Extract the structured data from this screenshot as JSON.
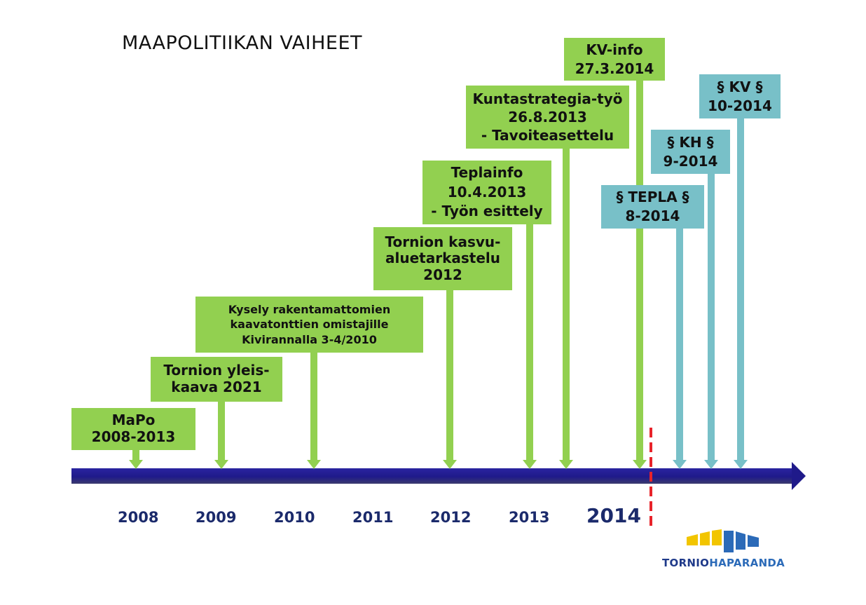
{
  "title": "MAAPOLITIIKAN VAIHEET",
  "events": [
    {
      "id": "mapo",
      "lines": [
        "MaPo",
        "2008-2013"
      ],
      "color": "#92d050"
    },
    {
      "id": "yleiskaava",
      "lines": [
        "Tornion yleis-",
        "kaava 2021"
      ],
      "color": "#92d050"
    },
    {
      "id": "kysely",
      "lines": [
        "Kysely rakentamattomien",
        "kaavatonttien omistajille",
        "Kivirannalla 3-4/2010"
      ],
      "color": "#92d050"
    },
    {
      "id": "kasvualue",
      "lines": [
        "Tornion kasvu-",
        "aluetarkastelu",
        "2012"
      ],
      "color": "#92d050"
    },
    {
      "id": "teplainfo",
      "lines": [
        "Teplainfo",
        "10.4.2013",
        "- Työn esittely"
      ],
      "color": "#92d050"
    },
    {
      "id": "kuntastrategia",
      "lines": [
        "Kuntastrategia-työ",
        "26.8.2013",
        "- Tavoiteasettelu"
      ],
      "color": "#92d050"
    },
    {
      "id": "kvinfo",
      "lines": [
        "KV-info",
        "27.3.2014"
      ],
      "color": "#92d050"
    },
    {
      "id": "tepla",
      "lines": [
        "§ TEPLA §",
        "8-2014"
      ],
      "color": "#78c0c8"
    },
    {
      "id": "kh",
      "lines": [
        "§ KH §",
        "9-2014"
      ],
      "color": "#78c0c8"
    },
    {
      "id": "kv",
      "lines": [
        "§ KV §",
        "10-2014"
      ],
      "color": "#78c0c8"
    }
  ],
  "years": [
    "2008",
    "2009",
    "2010",
    "2011",
    "2012",
    "2013",
    "2014"
  ],
  "colors": {
    "green": "#92d050",
    "teal": "#78c0c8",
    "axis": "#1f1a8a",
    "year_text": "#1b2a6b",
    "today_marker": "#e8232a"
  },
  "logo": {
    "part1": "TORNIO",
    "part2": "HAPARANDA",
    "color1": "#1f3a8a",
    "color2": "#2b6ab8"
  }
}
